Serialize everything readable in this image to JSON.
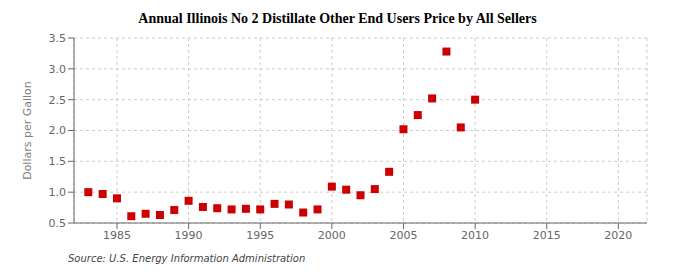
{
  "chart_data": {
    "type": "scatter",
    "title": "Annual Illinois No 2 Distillate Other End Users Price by All Sellers",
    "ylabel": "Dollars per Gallon",
    "annotations": [
      "Source: U.S. Energy Information Administration"
    ],
    "x": [
      1983,
      1984,
      1985,
      1986,
      1987,
      1988,
      1989,
      1990,
      1991,
      1992,
      1993,
      1994,
      1995,
      1996,
      1997,
      1998,
      1999,
      2000,
      2001,
      2002,
      2003,
      2004,
      2005,
      2006,
      2007,
      2008,
      2009,
      2010
    ],
    "values": [
      1.0,
      0.97,
      0.9,
      0.61,
      0.65,
      0.63,
      0.71,
      0.86,
      0.76,
      0.74,
      0.72,
      0.73,
      0.72,
      0.81,
      0.8,
      0.67,
      0.72,
      1.09,
      1.04,
      0.95,
      1.05,
      1.33,
      2.02,
      2.25,
      2.52,
      3.28,
      2.05,
      2.5
    ],
    "color": "#cc0000",
    "marker": "square",
    "xlim": [
      1982,
      2022
    ],
    "ylim": [
      0.5,
      3.5
    ],
    "xticks": [
      1985,
      1990,
      1995,
      2000,
      2005,
      2010,
      2015,
      2020
    ],
    "yticks": [
      0.5,
      {
        "value": 1,
        "label": "1.0"
      },
      1.5,
      {
        "value": 2,
        "label": "2.0"
      },
      2.5,
      {
        "value": 3,
        "label": "3.0"
      },
      3.5
    ],
    "grid": true
  }
}
